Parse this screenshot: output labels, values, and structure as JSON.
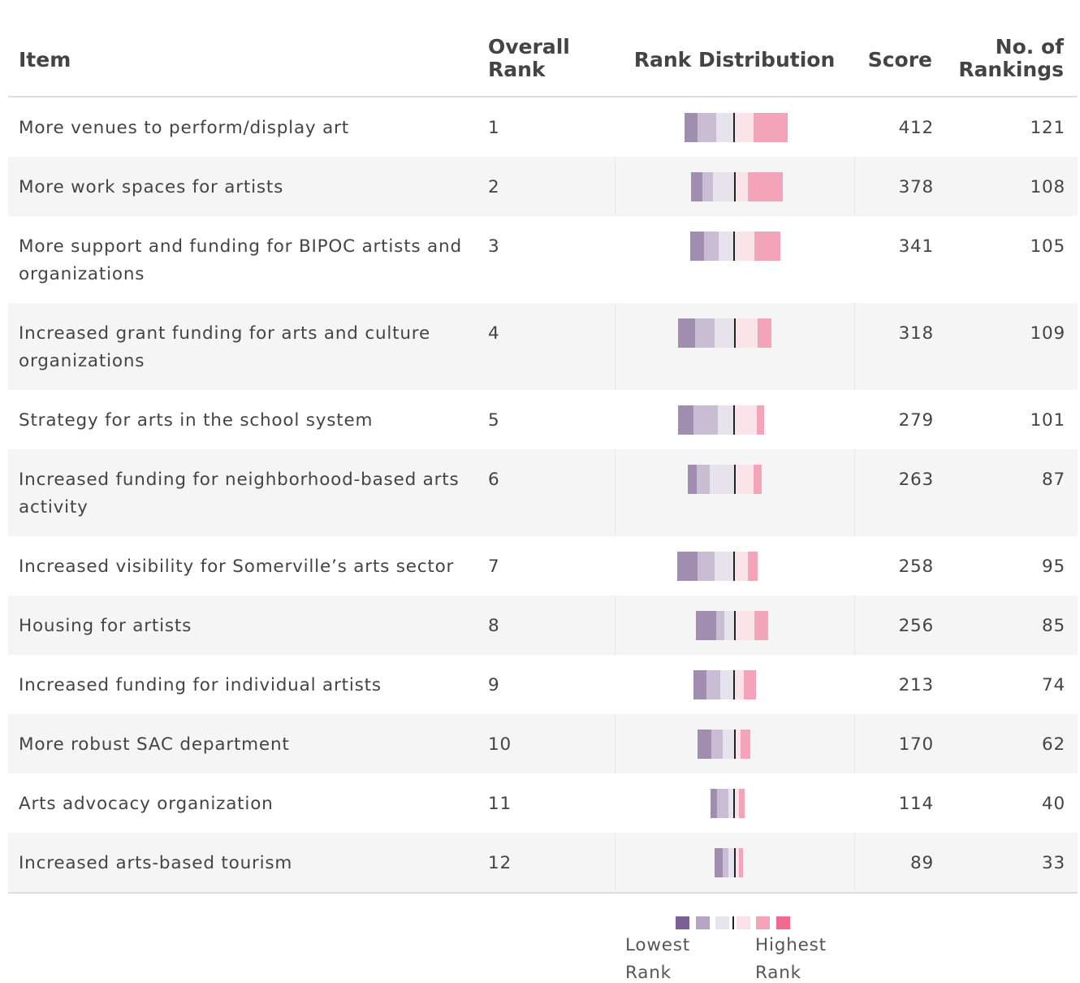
{
  "table": {
    "columns": [
      "Item",
      "Overall Rank",
      "Rank Distribution",
      "Score",
      "No. of Rankings"
    ],
    "segment_colors": [
      "#a18daf",
      "#c9bdd4",
      "#e6e3ec",
      "#fbe3ea",
      "#f4a4b8"
    ],
    "rows": [
      {
        "item": "More venues to perform/display art",
        "rank": "1",
        "distribution": [
          15,
          22,
          21,
          23,
          40
        ],
        "score": "412",
        "rankings": "121"
      },
      {
        "item": "More work spaces for artists",
        "rank": "2",
        "distribution": [
          13,
          13,
          25,
          16,
          41
        ],
        "score": "378",
        "rankings": "108"
      },
      {
        "item": "More support and funding for BIPOC artists and organizations",
        "rank": "3",
        "distribution": [
          16,
          17,
          18,
          24,
          30
        ],
        "score": "341",
        "rankings": "105"
      },
      {
        "item": "Increased grant funding for arts and culture organizations",
        "rank": "4",
        "distribution": [
          20,
          23,
          23,
          27,
          16
        ],
        "score": "318",
        "rankings": "109"
      },
      {
        "item": "Strategy for arts in the school system",
        "rank": "5",
        "distribution": [
          18,
          29,
          19,
          27,
          8
        ],
        "score": "279",
        "rankings": "101"
      },
      {
        "item": "Increased funding for neighborhood-based arts activity",
        "rank": "6",
        "distribution": [
          11,
          15,
          29,
          22,
          10
        ],
        "score": "263",
        "rankings": "87"
      },
      {
        "item": "Increased visibility for Somerville’s arts sector",
        "rank": "7",
        "distribution": [
          24,
          20,
          23,
          16,
          12
        ],
        "score": "258",
        "rankings": "95"
      },
      {
        "item": "Housing for artists",
        "rank": "8",
        "distribution": [
          24,
          9,
          12,
          23,
          17
        ],
        "score": "256",
        "rankings": "85"
      },
      {
        "item": "Increased funding for individual artists",
        "rank": "9",
        "distribution": [
          16,
          16,
          16,
          11,
          15
        ],
        "score": "213",
        "rankings": "74"
      },
      {
        "item": "More robust SAC department",
        "rank": "10",
        "distribution": [
          16,
          13,
          14,
          7,
          12
        ],
        "score": "170",
        "rankings": "62"
      },
      {
        "item": "Arts advocacy organization",
        "rank": "11",
        "distribution": [
          8,
          13,
          7,
          6,
          6
        ],
        "score": "114",
        "rankings": "40"
      },
      {
        "item": "Increased arts-based tourism",
        "rank": "12",
        "distribution": [
          9,
          7,
          7,
          5,
          5
        ],
        "score": "89",
        "rankings": "33"
      }
    ]
  },
  "legend": {
    "low": "Lowest Rank",
    "high": "Highest Rank",
    "colors": [
      "#7b6095",
      "#b4a4c8",
      "#e8e5ef",
      "#fbe1e8",
      "#f4a3b9",
      "#ef6a8e"
    ]
  }
}
